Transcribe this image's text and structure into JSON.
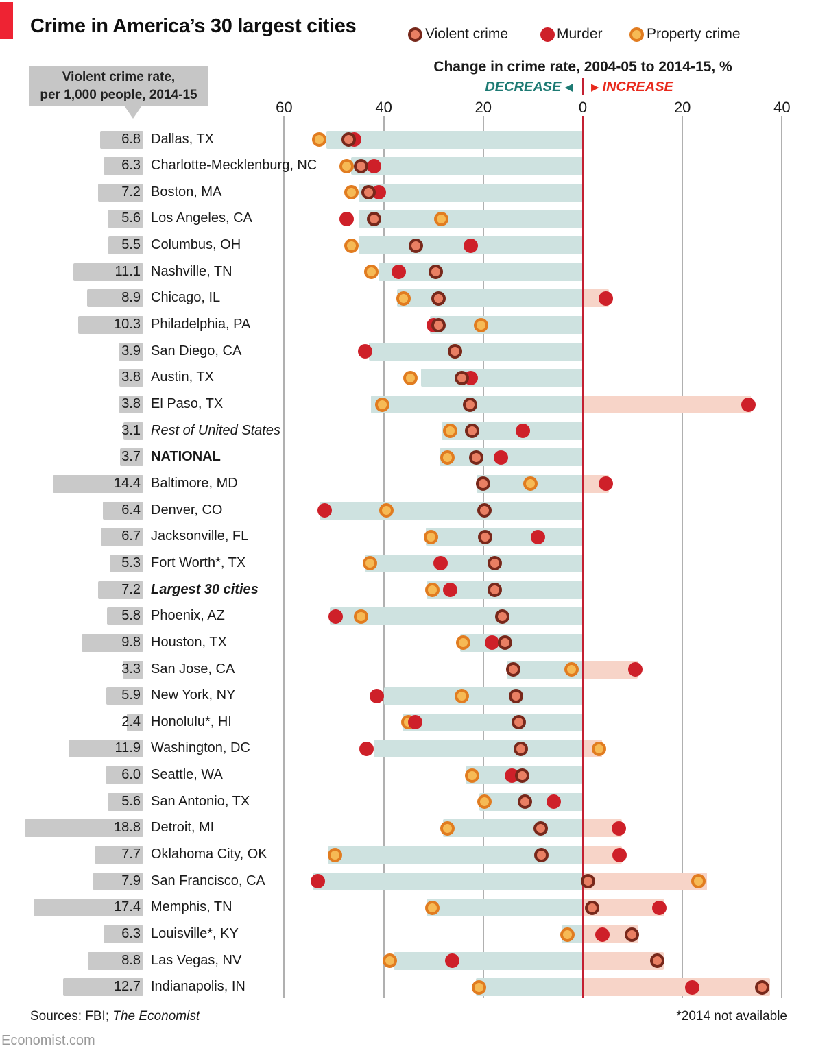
{
  "header": {
    "title": "Crime in America’s 30 largest cities",
    "subtitle": "Change in crime rate, 2004-05 to 2014-15, %"
  },
  "legend": [
    {
      "label": "Violent crime",
      "ring": "#77281b",
      "fill": "#e97f63"
    },
    {
      "label": "Murder",
      "ring": "#ce2029",
      "fill": "#ce2029"
    },
    {
      "label": "Property crime",
      "ring": "#e17c20",
      "fill": "#f6ba55"
    }
  ],
  "callout": {
    "line1": "Violent crime rate,",
    "line2": "per 1,000 people, 2014-15"
  },
  "direction": {
    "decrease": "DECREASE",
    "increase": "INCREASE",
    "decrease_color": "#1d7a73",
    "increase_color": "#e8291c",
    "left_arrow": "◀",
    "right_arrow": "▶"
  },
  "footer": {
    "sources_prefix": "Sources: FBI; ",
    "sources_italic": "The Economist",
    "note": "*2014 not available",
    "site": "Economist.com"
  },
  "chart_data": {
    "type": "scatter",
    "title": "Crime in America's 30 largest cities",
    "xlabel": "Change in crime rate, 2004-05 to 2014-15, %",
    "x_axis_note": "negative values = decrease, positive = increase",
    "xlim": [
      -62,
      42
    ],
    "ticks": [
      {
        "label": "60",
        "value": -60
      },
      {
        "label": "40",
        "value": -40
      },
      {
        "label": "20",
        "value": -20
      },
      {
        "label": "0",
        "value": 0
      },
      {
        "label": "20",
        "value": 20
      },
      {
        "label": "40",
        "value": 40
      }
    ],
    "series_keys": [
      "violent",
      "murder",
      "property"
    ],
    "bar_note": "bar_decrease/bar_increase are the teal/pink band extents in % from zero",
    "colors": {
      "decrease_bar": "#cee2e0",
      "increase_bar": "#f7d4c8",
      "violent_ring": "#77281b",
      "violent_fill": "#e97f63",
      "murder": "#ce2029",
      "property_ring": "#e17c20",
      "property_fill": "#f6ba55",
      "zero_line": "#c32032",
      "gridline": "#b0b0b0",
      "rate_bar": "#c9c9c9"
    },
    "rows": [
      {
        "rate": "6.8",
        "city": "Dallas, TX",
        "style": "normal",
        "violent": -47.0,
        "murder": -46.0,
        "property": -53.0,
        "bar_decrease": 51.5,
        "bar_increase": 0
      },
      {
        "rate": "6.3",
        "city": "Charlotte-Mecklenburg, NC",
        "style": "normal",
        "violent": -44.5,
        "murder": -42.0,
        "property": -47.5,
        "bar_decrease": 46.5,
        "bar_increase": 0
      },
      {
        "rate": "7.2",
        "city": "Boston, MA",
        "style": "normal",
        "violent": -43.0,
        "murder": -41.0,
        "property": -46.5,
        "bar_decrease": 45.0,
        "bar_increase": 0
      },
      {
        "rate": "5.6",
        "city": "Los Angeles, CA",
        "style": "normal",
        "violent": -42.0,
        "murder": -47.5,
        "property": -28.5,
        "bar_decrease": 45.0,
        "bar_increase": 0
      },
      {
        "rate": "5.5",
        "city": "Columbus, OH",
        "style": "normal",
        "violent": -33.5,
        "murder": -22.5,
        "property": -46.5,
        "bar_decrease": 45.0,
        "bar_increase": 0
      },
      {
        "rate": "11.1",
        "city": "Nashville, TN",
        "style": "normal",
        "violent": -29.5,
        "murder": -37.0,
        "property": -42.5,
        "bar_decrease": 41.0,
        "bar_increase": 0
      },
      {
        "rate": "8.9",
        "city": "Chicago, IL",
        "style": "normal",
        "violent": -29.0,
        "murder": 4.6,
        "property": -36.0,
        "bar_decrease": 37.3,
        "bar_increase": 5.3
      },
      {
        "rate": "10.3",
        "city": "Philadelphia, PA",
        "style": "normal",
        "violent": -29.0,
        "murder": -30.0,
        "property": -20.5,
        "bar_decrease": 30.7,
        "bar_increase": 0
      },
      {
        "rate": "3.9",
        "city": "San Diego, CA",
        "style": "normal",
        "violent": -25.7,
        "murder": -43.7,
        "property": -25.7,
        "bar_decrease": 43.0,
        "bar_increase": 0
      },
      {
        "rate": "3.8",
        "city": "Austin, TX",
        "style": "normal",
        "violent": -24.3,
        "murder": -22.5,
        "property": -34.7,
        "bar_decrease": 32.5,
        "bar_increase": 0
      },
      {
        "rate": "3.8",
        "city": "El Paso, TX",
        "style": "normal",
        "violent": -22.7,
        "murder": 33.3,
        "property": -40.3,
        "bar_decrease": 42.5,
        "bar_increase": 33.8
      },
      {
        "rate": "3.1",
        "city": "Rest of United States",
        "style": "italic",
        "violent": -22.3,
        "murder": -12.0,
        "property": -26.6,
        "bar_decrease": 28.4,
        "bar_increase": 0
      },
      {
        "rate": "3.7",
        "city": "NATIONAL",
        "style": "bold",
        "violent": -21.4,
        "murder": -16.4,
        "property": -27.2,
        "bar_decrease": 28.8,
        "bar_increase": 0
      },
      {
        "rate": "14.4",
        "city": "Baltimore, MD",
        "style": "normal",
        "violent": -20.0,
        "murder": 4.6,
        "property": -10.6,
        "bar_decrease": 21.4,
        "bar_increase": 5.3
      },
      {
        "rate": "6.4",
        "city": "Denver, CO",
        "style": "normal",
        "violent": -19.8,
        "murder": -51.9,
        "property": -39.4,
        "bar_decrease": 52.9,
        "bar_increase": 0
      },
      {
        "rate": "6.7",
        "city": "Jacksonville, FL",
        "style": "normal",
        "violent": -19.6,
        "murder": -9.0,
        "property": -30.5,
        "bar_decrease": 31.6,
        "bar_increase": 0
      },
      {
        "rate": "5.3",
        "city": "Fort Worth*, TX",
        "style": "normal",
        "violent": -17.7,
        "murder": -28.6,
        "property": -42.7,
        "bar_decrease": 43.7,
        "bar_increase": 0
      },
      {
        "rate": "7.2",
        "city": "Largest 30 cities",
        "style": "bold-italic",
        "violent": -17.7,
        "murder": -26.6,
        "property": -30.2,
        "bar_decrease": 31.4,
        "bar_increase": 0
      },
      {
        "rate": "5.8",
        "city": "Phoenix, AZ",
        "style": "normal",
        "violent": -16.2,
        "murder": -49.7,
        "property": -44.5,
        "bar_decrease": 50.8,
        "bar_increase": 0
      },
      {
        "rate": "9.8",
        "city": "Houston, TX",
        "style": "normal",
        "violent": -15.7,
        "murder": -18.3,
        "property": -24.0,
        "bar_decrease": 24.7,
        "bar_increase": 0
      },
      {
        "rate": "3.3",
        "city": "San Jose, CA",
        "style": "normal",
        "violent": -14.0,
        "murder": 10.6,
        "property": -2.3,
        "bar_decrease": 15.3,
        "bar_increase": 11.0
      },
      {
        "rate": "5.9",
        "city": "New York, NY",
        "style": "normal",
        "violent": -13.4,
        "murder": -41.4,
        "property": -24.3,
        "bar_decrease": 40.0,
        "bar_increase": 0
      },
      {
        "rate": "2.4",
        "city": "Honolulu*, HI",
        "style": "normal",
        "violent": -12.9,
        "murder": -33.7,
        "property": -35.0,
        "bar_decrease": 36.2,
        "bar_increase": 0
      },
      {
        "rate": "11.9",
        "city": "Washington, DC",
        "style": "normal",
        "violent": -12.5,
        "murder": -43.4,
        "property": 3.2,
        "bar_decrease": 42.0,
        "bar_increase": 3.9
      },
      {
        "rate": "6.0",
        "city": "Seattle, WA",
        "style": "normal",
        "violent": -12.2,
        "murder": -14.3,
        "property": -22.2,
        "bar_decrease": 23.5,
        "bar_increase": 0
      },
      {
        "rate": "5.6",
        "city": "San Antonio, TX",
        "style": "normal",
        "violent": -11.6,
        "murder": -5.8,
        "property": -19.8,
        "bar_decrease": 20.8,
        "bar_increase": 0
      },
      {
        "rate": "18.8",
        "city": "Detroit, MI",
        "style": "normal",
        "violent": -8.5,
        "murder": 7.2,
        "property": -27.2,
        "bar_decrease": 28.1,
        "bar_increase": 7.9
      },
      {
        "rate": "7.7",
        "city": "Oklahoma City, OK",
        "style": "normal",
        "violent": -8.3,
        "murder": 7.4,
        "property": -49.8,
        "bar_decrease": 51.2,
        "bar_increase": 7.9
      },
      {
        "rate": "7.9",
        "city": "San Francisco, CA",
        "style": "normal",
        "violent": 1.1,
        "murder": -53.3,
        "property": 23.2,
        "bar_decrease": 54.2,
        "bar_increase": 24.9
      },
      {
        "rate": "17.4",
        "city": "Memphis, TN",
        "style": "normal",
        "violent": 1.8,
        "murder": 15.3,
        "property": -30.2,
        "bar_decrease": 31.4,
        "bar_increase": 16.3
      },
      {
        "rate": "6.3",
        "city": "Louisville*, KY",
        "style": "normal",
        "violent": 9.9,
        "murder": 3.9,
        "property": -3.1,
        "bar_decrease": 4.3,
        "bar_increase": 11.2
      },
      {
        "rate": "8.8",
        "city": "Las Vegas, NV",
        "style": "normal",
        "violent": 15.0,
        "murder": -26.3,
        "property": -38.8,
        "bar_decrease": 38.0,
        "bar_increase": 16.3
      },
      {
        "rate": "12.7",
        "city": "Indianapolis, IN",
        "style": "normal",
        "violent": 36.0,
        "murder": 22.0,
        "property": -20.8,
        "bar_decrease": 21.5,
        "bar_increase": 37.6
      }
    ]
  }
}
